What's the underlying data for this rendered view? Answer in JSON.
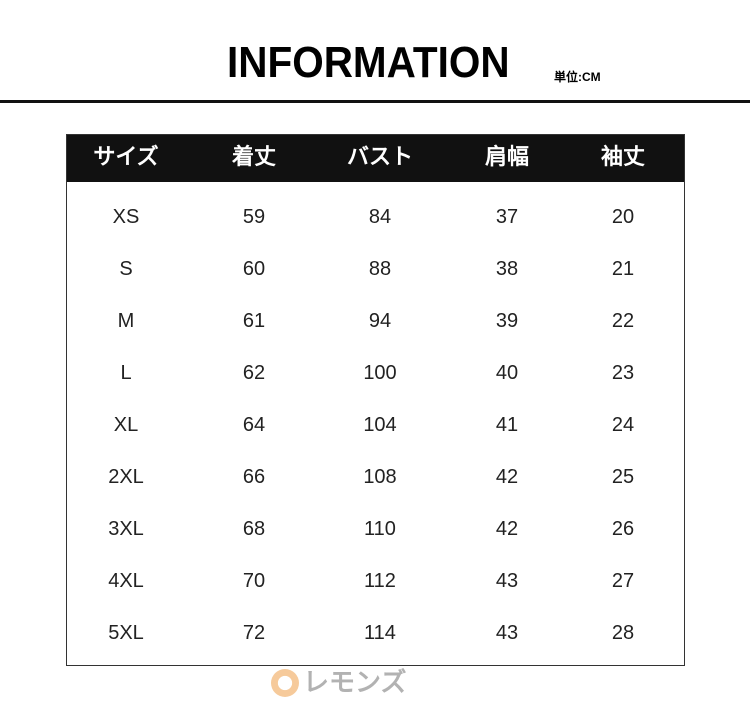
{
  "header": {
    "title": "INFORMATION",
    "unit": "単位:CM"
  },
  "table": {
    "columns": [
      "サイズ",
      "着丈",
      "バスト",
      "肩幅",
      "袖丈"
    ],
    "rows": [
      [
        "XS",
        "59",
        "84",
        "37",
        "20"
      ],
      [
        "S",
        "60",
        "88",
        "38",
        "21"
      ],
      [
        "M",
        "61",
        "94",
        "39",
        "22"
      ],
      [
        "L",
        "62",
        "100",
        "40",
        "23"
      ],
      [
        "XL",
        "64",
        "104",
        "41",
        "24"
      ],
      [
        "2XL",
        "66",
        "108",
        "42",
        "25"
      ],
      [
        "3XL",
        "68",
        "110",
        "42",
        "26"
      ],
      [
        "4XL",
        "70",
        "112",
        "43",
        "27"
      ],
      [
        "5XL",
        "72",
        "114",
        "43",
        "28"
      ]
    ]
  },
  "watermark": {
    "text": "レモンズ",
    "logo_color": "#f3b97a"
  }
}
